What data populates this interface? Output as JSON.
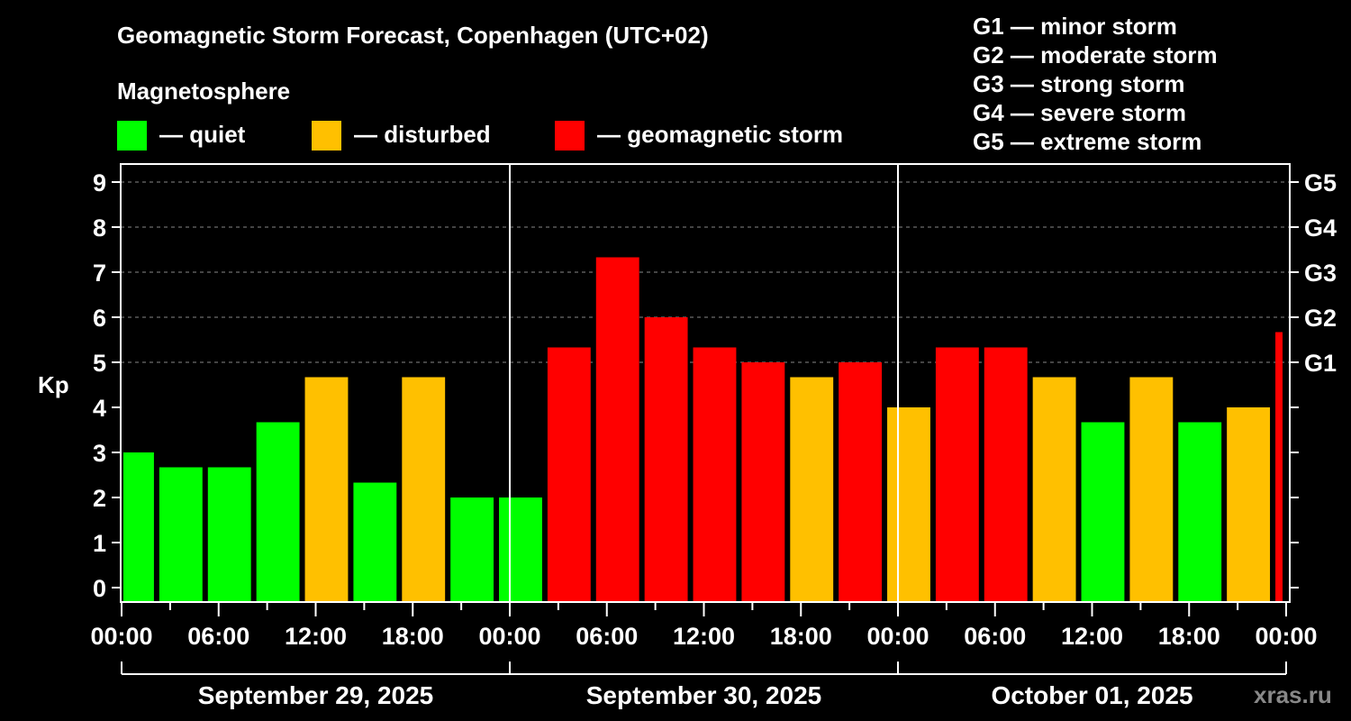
{
  "chart_data": {
    "type": "bar",
    "title": "Geomagnetic Storm Forecast, Copenhagen (UTC+02)",
    "ylabel": "Kp",
    "ylim": [
      -0.32,
      9.4
    ],
    "yticks": [
      "0",
      "1",
      "2",
      "3",
      "4",
      "5",
      "6",
      "7",
      "8",
      "9"
    ],
    "right_ticks": [
      {
        "kp": 5,
        "label": "G1"
      },
      {
        "kp": 6,
        "label": "G2"
      },
      {
        "kp": 7,
        "label": "G3"
      },
      {
        "kp": 8,
        "label": "G4"
      },
      {
        "kp": 9,
        "label": "G5"
      }
    ],
    "xlim_hours": [
      0,
      72
    ],
    "xtick_labels": [
      "00:00",
      "06:00",
      "12:00",
      "18:00",
      "00:00",
      "06:00",
      "12:00",
      "18:00",
      "00:00",
      "06:00",
      "12:00",
      "18:00",
      "00:00"
    ],
    "dates": [
      "September 29, 2025",
      "September 30, 2025",
      "October 01, 2025"
    ],
    "grid": true,
    "bars": [
      {
        "start": 0,
        "end": 2,
        "kp": 3.0,
        "level": "quiet"
      },
      {
        "start": 2,
        "end": 5,
        "kp": 2.67,
        "level": "quiet"
      },
      {
        "start": 5,
        "end": 8,
        "kp": 2.67,
        "level": "quiet"
      },
      {
        "start": 8,
        "end": 11,
        "kp": 3.67,
        "level": "quiet"
      },
      {
        "start": 11,
        "end": 14,
        "kp": 4.67,
        "level": "disturbed"
      },
      {
        "start": 14,
        "end": 17,
        "kp": 2.33,
        "level": "quiet"
      },
      {
        "start": 17,
        "end": 20,
        "kp": 4.67,
        "level": "disturbed"
      },
      {
        "start": 20,
        "end": 23,
        "kp": 2.0,
        "level": "quiet"
      },
      {
        "start": 23,
        "end": 26,
        "kp": 2.0,
        "level": "quiet"
      },
      {
        "start": 26,
        "end": 29,
        "kp": 5.33,
        "level": "storm"
      },
      {
        "start": 29,
        "end": 32,
        "kp": 7.33,
        "level": "storm"
      },
      {
        "start": 32,
        "end": 35,
        "kp": 6.0,
        "level": "storm"
      },
      {
        "start": 35,
        "end": 38,
        "kp": 5.33,
        "level": "storm"
      },
      {
        "start": 38,
        "end": 41,
        "kp": 5.0,
        "level": "storm"
      },
      {
        "start": 41,
        "end": 44,
        "kp": 4.67,
        "level": "disturbed"
      },
      {
        "start": 44,
        "end": 47,
        "kp": 5.0,
        "level": "storm"
      },
      {
        "start": 47,
        "end": 50,
        "kp": 4.0,
        "level": "disturbed"
      },
      {
        "start": 50,
        "end": 53,
        "kp": 5.33,
        "level": "storm"
      },
      {
        "start": 53,
        "end": 56,
        "kp": 5.33,
        "level": "storm"
      },
      {
        "start": 56,
        "end": 59,
        "kp": 4.67,
        "level": "disturbed"
      },
      {
        "start": 59,
        "end": 62,
        "kp": 3.67,
        "level": "quiet"
      },
      {
        "start": 62,
        "end": 65,
        "kp": 4.67,
        "level": "disturbed"
      },
      {
        "start": 65,
        "end": 68,
        "kp": 3.67,
        "level": "quiet"
      },
      {
        "start": 68,
        "end": 71,
        "kp": 4.0,
        "level": "disturbed"
      },
      {
        "start": 71,
        "end": 72,
        "kp": 5.67,
        "level": "storm"
      }
    ],
    "colors": {
      "quiet": "#00ff00",
      "disturbed": "#ffc000",
      "storm": "#ff0000"
    }
  },
  "legend": {
    "heading": "Magnetosphere",
    "quiet": "— quiet",
    "disturbed": "— disturbed",
    "storm": "— geomagnetic storm"
  },
  "scale": [
    "G1 — minor storm",
    "G2 — moderate storm",
    "G3 — strong storm",
    "G4 — severe storm",
    "G5 — extreme storm"
  ],
  "watermark": "xras.ru"
}
